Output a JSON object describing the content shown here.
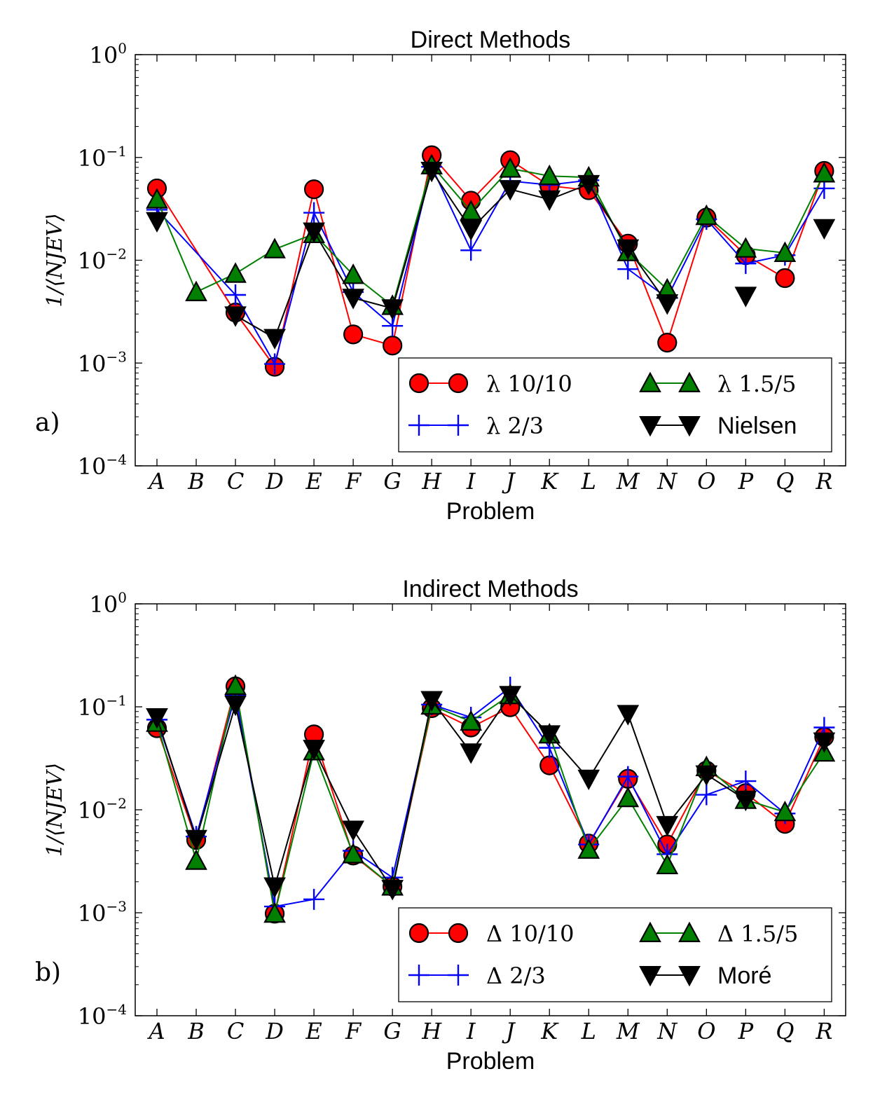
{
  "chart_data": [
    {
      "type": "line",
      "title": "Direct Methods",
      "panel_label": "a)",
      "xlabel": "Problem",
      "ylabel": "1/⟨NJEV⟩",
      "yscale": "log",
      "ylim": [
        0.0001,
        1
      ],
      "ytick_exponents": [
        "0",
        "−1",
        "−2",
        "−3",
        "−4"
      ],
      "categories": [
        "A",
        "B",
        "C",
        "D",
        "E",
        "F",
        "G",
        "H",
        "I",
        "J",
        "K",
        "L",
        "M",
        "N",
        "O",
        "P",
        "Q",
        "R"
      ],
      "legend_position": "lower right",
      "series": [
        {
          "name": "λ 10/10",
          "marker": "circle",
          "color": "#ff0000",
          "values": [
            0.05,
            null,
            0.0031,
            0.00092,
            0.049,
            0.0019,
            0.00148,
            0.105,
            0.038,
            0.094,
            0.053,
            0.048,
            0.0145,
            0.00158,
            0.026,
            0.0112,
            0.0067,
            0.074
          ]
        },
        {
          "name": "λ 2/3",
          "marker": "plus",
          "color": "#0000ff",
          "values": [
            0.031,
            null,
            0.0046,
            0.00098,
            0.029,
            0.0049,
            0.0023,
            0.081,
            0.0125,
            0.059,
            0.054,
            0.06,
            0.0082,
            0.0043,
            0.025,
            0.0093,
            0.0112,
            0.05
          ]
        },
        {
          "name": "λ 1.5/5",
          "marker": "triangle-up",
          "color": "#007f00",
          "values": [
            0.039,
            0.0049,
            0.0074,
            0.0128,
            0.018,
            0.0072,
            0.0036,
            0.084,
            0.03,
            0.078,
            0.066,
            0.064,
            0.012,
            0.0052,
            0.027,
            0.013,
            0.0118,
            0.07
          ]
        },
        {
          "name": "Nielsen",
          "marker": "triangle-down",
          "color": "#000000",
          "values": [
            0.024,
            null,
            0.0029,
            0.00175,
            0.019,
            0.0043,
            0.0034,
            0.074,
            0.02,
            0.049,
            0.039,
            0.055,
            0.013,
            0.0038,
            null,
            0.0045,
            null,
            0.0205
          ],
          "segments": [
            [
              0,
              0
            ],
            [
              2,
              13
            ],
            [
              15,
              15
            ],
            [
              17,
              17
            ]
          ]
        }
      ]
    },
    {
      "type": "line",
      "title": "Indirect Methods",
      "panel_label": "b)",
      "xlabel": "Problem",
      "ylabel": "1/⟨NJEV⟩",
      "yscale": "log",
      "ylim": [
        0.0001,
        1
      ],
      "ytick_exponents": [
        "0",
        "−1",
        "−2",
        "−3",
        "−4"
      ],
      "categories": [
        "A",
        "B",
        "C",
        "D",
        "E",
        "F",
        "G",
        "H",
        "I",
        "J",
        "K",
        "L",
        "M",
        "N",
        "O",
        "P",
        "Q",
        "R"
      ],
      "legend_position": "lower right",
      "series": [
        {
          "name": "Δ 10/10",
          "marker": "circle",
          "color": "#ff0000",
          "values": [
            0.062,
            0.0051,
            0.158,
            0.00098,
            0.054,
            0.0036,
            0.0018,
            0.097,
            0.063,
            0.099,
            0.027,
            0.0047,
            0.02,
            0.0046,
            0.024,
            0.0145,
            0.0073,
            0.051
          ]
        },
        {
          "name": "Δ 2/3",
          "marker": "plus",
          "color": "#0000ff",
          "values": [
            0.075,
            0.0055,
            0.13,
            0.00115,
            0.00135,
            0.004,
            0.0022,
            0.105,
            0.079,
            0.155,
            0.04,
            0.0046,
            0.021,
            0.0037,
            0.014,
            0.019,
            0.0092,
            0.063
          ]
        },
        {
          "name": "Δ 1.5/5",
          "marker": "triangle-up",
          "color": "#007f00",
          "values": [
            0.07,
            0.0032,
            0.16,
            0.00098,
            0.037,
            0.0037,
            0.0018,
            0.103,
            0.072,
            0.13,
            0.054,
            0.0041,
            0.013,
            0.0029,
            0.026,
            0.0125,
            0.0095,
            0.036
          ]
        },
        {
          "name": "Moré",
          "marker": "triangle-down",
          "color": "#000000",
          "values": [
            0.079,
            0.0052,
            0.105,
            0.0018,
            0.039,
            0.0064,
            0.0017,
            0.116,
            0.036,
            0.13,
            0.054,
            0.02,
            0.085,
            0.0071,
            0.022,
            0.0125,
            null,
            0.046
          ],
          "segments": [
            [
              0,
              15
            ],
            [
              17,
              17
            ]
          ]
        }
      ]
    }
  ]
}
